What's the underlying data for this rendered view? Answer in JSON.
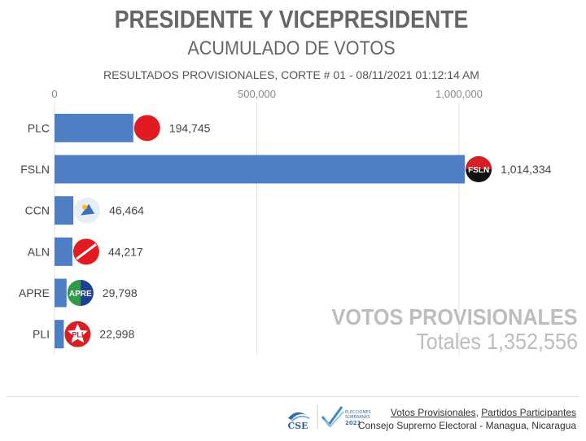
{
  "header": {
    "title": "PRESIDENTE Y VICEPRESIDENTE",
    "subtitle": "ACUMULADO DE VOTOS",
    "cut_info": "RESULTADOS PROVISIONALES, CORTE # 01 - 08/11/2021 01:12:14 AM"
  },
  "chart_data": {
    "type": "bar",
    "orientation": "horizontal",
    "categories": [
      "PLC",
      "FSLN",
      "CCN",
      "ALN",
      "APRE",
      "PLI"
    ],
    "values": [
      194745,
      1014334,
      46464,
      44217,
      29798,
      22998
    ],
    "value_labels": [
      "194,745",
      "1,014,334",
      "46,464",
      "44,217",
      "29,798",
      "22,998"
    ],
    "xlim": [
      0,
      1000000
    ],
    "x_ticks": [
      0,
      500000,
      1000000
    ],
    "x_tick_labels": [
      "0",
      "500,000",
      "1,000,000"
    ],
    "x_axis_position": "top",
    "grid": true,
    "bar_color": "#4e7fc4"
  },
  "party_logos": [
    {
      "name": "plc-logo-icon",
      "color": "#e11b22",
      "text": ""
    },
    {
      "name": "fsln-logo-icon",
      "color": "#d31f26",
      "text": "FSLN"
    },
    {
      "name": "ccn-logo-icon",
      "color": "#e8eef7",
      "text": ""
    },
    {
      "name": "aln-logo-icon",
      "color": "#e11b22",
      "text": ""
    },
    {
      "name": "apre-logo-icon",
      "color": "#2f9a47",
      "text": "APRE"
    },
    {
      "name": "pli-logo-icon",
      "color": "#d71f26",
      "text": "PLI"
    }
  ],
  "totals": {
    "title": "VOTOS PROVISIONALES",
    "value": "Totales 1,352,556"
  },
  "footer": {
    "logo_cse": "CSE",
    "logo_elecciones": "ELECCIONES SOBERANAS 2021",
    "link_votos": "Votos Provisionales",
    "separator": ", ",
    "link_partidos": "Partidos Participantes",
    "org": "Consejo Supremo Electoral - Managua, Nicaragua"
  }
}
